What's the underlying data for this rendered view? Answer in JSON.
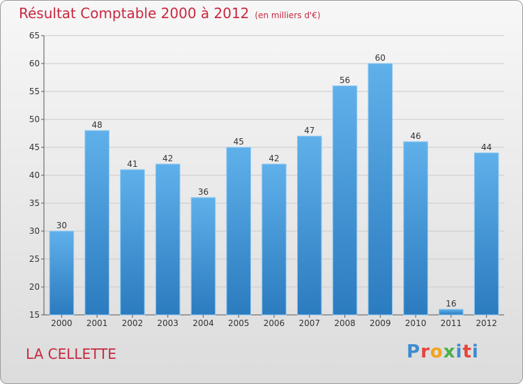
{
  "header": {
    "title": "Résultat Comptable 2000 à 2012",
    "subtitle": "(en milliers d'€)"
  },
  "footer": {
    "location": "LA CELLETTE",
    "brand": "Proxiti"
  },
  "colors": {
    "title": "#c8283f",
    "bar_top": "#5fb0ea",
    "bar_bottom": "#2b7bbf",
    "brand_letters": [
      "#3f8bd0",
      "#e8433d",
      "#f3a41b",
      "#4bb04b",
      "#3f8bd0",
      "#e8433d",
      "#3f8bd0"
    ]
  },
  "chart_data": {
    "type": "bar",
    "title": "Résultat Comptable 2000 à 2012",
    "xlabel": "",
    "ylabel": "",
    "categories": [
      "2000",
      "2001",
      "2002",
      "2003",
      "2004",
      "2005",
      "2006",
      "2007",
      "2008",
      "2009",
      "2010",
      "2011",
      "2012"
    ],
    "values": [
      30,
      48,
      41,
      42,
      36,
      45,
      42,
      47,
      56,
      60,
      46,
      16,
      44
    ],
    "ylim": [
      15,
      65
    ],
    "yticks": [
      15,
      20,
      25,
      30,
      35,
      40,
      45,
      50,
      55,
      60,
      65
    ],
    "grid": true
  }
}
